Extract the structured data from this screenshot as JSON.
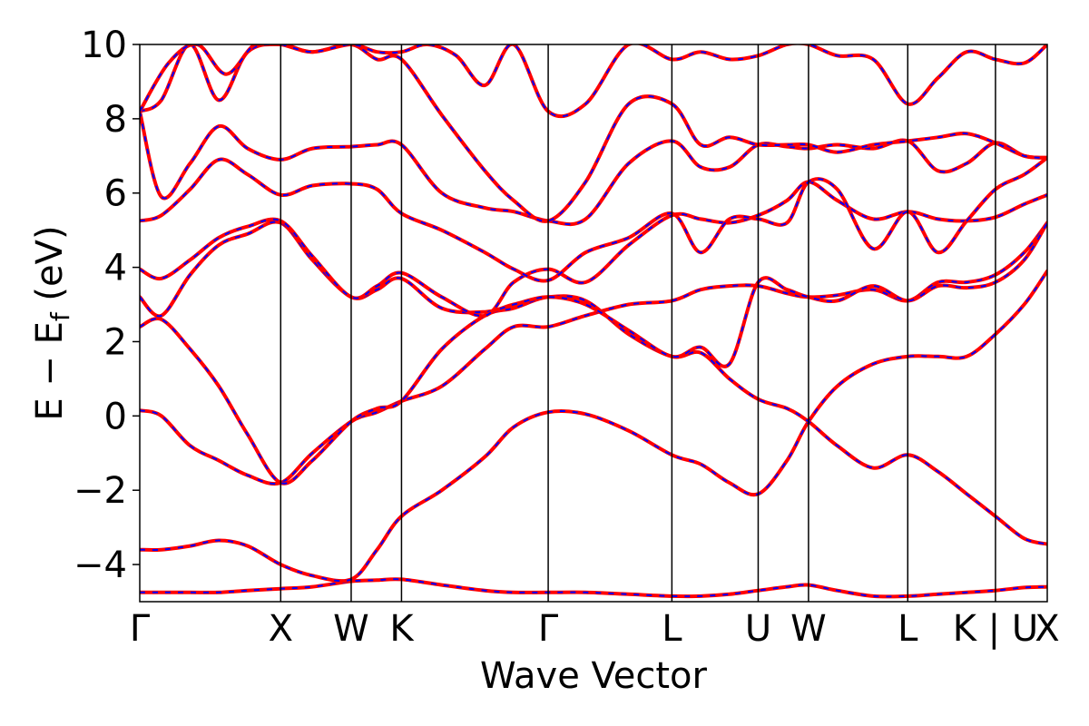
{
  "chart_data": {
    "type": "line",
    "xlabel": "Wave Vector",
    "ylabel_main": "E − E",
    "ylabel_sub": "f",
    "ylabel_unit": " (eV)",
    "ylim": [
      -5,
      10
    ],
    "xlim": [
      0,
      6.31
    ],
    "yticks": [
      -4,
      -2,
      0,
      2,
      4,
      6,
      8,
      10
    ],
    "ytick_labels": [
      "−4",
      "−2",
      "0",
      "2",
      "4",
      "6",
      "8",
      "10"
    ],
    "kpoints": [
      {
        "label": "Γ",
        "x": 0.0
      },
      {
        "label": "X",
        "x": 0.98
      },
      {
        "label": "W",
        "x": 1.47
      },
      {
        "label": "K",
        "x": 1.82
      },
      {
        "label": "Γ",
        "x": 2.84
      },
      {
        "label": "L",
        "x": 3.7
      },
      {
        "label": "U",
        "x": 4.3
      },
      {
        "label": "W",
        "x": 4.65
      },
      {
        "label": "L",
        "x": 5.34
      },
      {
        "label": "K | U",
        "x": 5.95
      },
      {
        "label": "X",
        "x": 6.31
      }
    ],
    "grid": false,
    "legend": "none",
    "colors": {
      "band_primary": "#ff0000",
      "band_overlay": "#0000ff",
      "kpath_line": "#000000"
    },
    "series": [
      {
        "x": [
          0.0,
          0.15,
          0.35,
          0.55,
          0.75,
          0.98,
          1.2,
          1.47,
          1.65,
          1.82,
          2.1,
          2.4,
          2.6,
          2.84,
          3.1,
          3.4,
          3.7,
          3.9,
          4.1,
          4.3,
          4.5,
          4.65,
          4.85,
          5.1,
          5.34,
          5.55,
          5.75,
          5.95,
          6.15,
          6.31
        ],
        "y": [
          -4.75,
          -4.75,
          -4.75,
          -4.75,
          -4.7,
          -4.65,
          -4.6,
          -4.45,
          -4.42,
          -4.4,
          -4.55,
          -4.7,
          -4.75,
          -4.75,
          -4.75,
          -4.8,
          -4.85,
          -4.85,
          -4.8,
          -4.7,
          -4.6,
          -4.55,
          -4.7,
          -4.85,
          -4.85,
          -4.8,
          -4.75,
          -4.7,
          -4.62,
          -4.6
        ]
      },
      {
        "x": [
          0.0,
          0.15,
          0.35,
          0.55,
          0.75,
          0.98,
          1.2,
          1.47,
          1.65,
          1.82,
          2.1,
          2.4,
          2.6,
          2.84,
          3.1,
          3.4,
          3.7,
          3.9,
          4.1,
          4.3,
          4.5,
          4.65,
          4.85,
          5.1,
          5.34,
          5.55,
          5.75,
          5.95,
          6.15,
          6.31
        ],
        "y": [
          -3.6,
          -3.6,
          -3.5,
          -3.35,
          -3.5,
          -4.0,
          -4.3,
          -4.4,
          -3.6,
          -2.7,
          -2.0,
          -1.1,
          -0.3,
          0.1,
          0.05,
          -0.4,
          -1.05,
          -1.3,
          -1.8,
          -2.1,
          -1.2,
          -0.15,
          0.8,
          1.4,
          1.6,
          1.6,
          1.6,
          2.2,
          3.0,
          3.9
        ]
      },
      {
        "x": [
          0.0,
          0.15,
          0.35,
          0.55,
          0.75,
          0.98,
          1.2,
          1.47,
          1.65,
          1.82,
          2.1,
          2.4,
          2.6,
          2.84,
          3.1,
          3.4,
          3.7,
          3.9,
          4.1,
          4.3,
          4.5,
          4.65,
          4.85,
          5.1,
          5.34,
          5.55,
          5.75,
          5.95,
          6.15,
          6.31
        ],
        "y": [
          0.15,
          0.0,
          -0.8,
          -1.2,
          -1.6,
          -1.8,
          -1.0,
          -0.15,
          0.1,
          0.4,
          0.8,
          1.8,
          2.4,
          2.4,
          2.7,
          3.0,
          3.1,
          3.4,
          3.5,
          3.5,
          3.3,
          3.2,
          3.25,
          3.4,
          3.1,
          3.6,
          3.6,
          3.8,
          4.4,
          5.2
        ]
      },
      {
        "x": [
          0.0,
          0.15,
          0.35,
          0.55,
          0.75,
          0.98,
          1.2,
          1.47,
          1.65,
          1.82,
          2.1,
          2.4,
          2.6,
          2.84,
          3.1,
          3.4,
          3.7,
          3.9,
          4.1,
          4.3,
          4.5,
          4.65,
          4.85,
          5.1,
          5.34,
          5.55,
          5.75,
          5.95,
          6.15,
          6.31
        ],
        "y": [
          2.4,
          2.6,
          1.8,
          0.8,
          -0.5,
          -1.8,
          -1.2,
          -0.15,
          0.2,
          0.4,
          1.8,
          2.7,
          2.9,
          3.2,
          3.1,
          2.2,
          1.6,
          1.7,
          1.0,
          0.45,
          0.2,
          -0.15,
          -0.8,
          -1.4,
          -1.05,
          -1.5,
          -2.1,
          -2.7,
          -3.3,
          -3.45
        ]
      },
      {
        "x": [
          0.0,
          0.15,
          0.35,
          0.55,
          0.75,
          0.98,
          1.2,
          1.47,
          1.65,
          1.82,
          2.1,
          2.4,
          2.6,
          2.84,
          3.1,
          3.4,
          3.7,
          3.9,
          4.1,
          4.3,
          4.5,
          4.65,
          4.85,
          5.1,
          5.34,
          5.55,
          5.75,
          5.95,
          6.15,
          6.31
        ],
        "y": [
          3.2,
          2.7,
          3.8,
          4.6,
          4.9,
          5.2,
          4.2,
          3.2,
          3.4,
          3.7,
          2.9,
          2.8,
          3.0,
          3.2,
          3.0,
          2.3,
          1.6,
          1.85,
          1.4,
          3.6,
          3.4,
          3.2,
          3.1,
          3.5,
          3.1,
          3.5,
          3.45,
          3.6,
          4.2,
          5.2
        ]
      },
      {
        "x": [
          0.0,
          0.15,
          0.35,
          0.55,
          0.75,
          0.98,
          1.2,
          1.47,
          1.65,
          1.82,
          2.1,
          2.4,
          2.6,
          2.84,
          3.1,
          3.4,
          3.7,
          3.9,
          4.1,
          4.3,
          4.5,
          4.65,
          4.85,
          5.1,
          5.34,
          5.55,
          5.75,
          5.95,
          6.15,
          6.31
        ],
        "y": [
          3.95,
          3.7,
          4.2,
          4.8,
          5.1,
          5.25,
          4.3,
          3.2,
          3.5,
          3.85,
          3.2,
          2.7,
          3.6,
          3.95,
          3.6,
          4.6,
          5.4,
          5.3,
          5.2,
          5.4,
          5.8,
          6.3,
          5.8,
          5.3,
          5.5,
          5.3,
          5.25,
          5.35,
          5.7,
          5.95
        ]
      },
      {
        "x": [
          0.0,
          0.15,
          0.35,
          0.55,
          0.75,
          0.98,
          1.2,
          1.47,
          1.65,
          1.82,
          2.1,
          2.4,
          2.6,
          2.84,
          3.1,
          3.4,
          3.7,
          3.9,
          4.1,
          4.3,
          4.5,
          4.65,
          4.85,
          5.1,
          5.34,
          5.55,
          5.75,
          5.95,
          6.15,
          6.31
        ],
        "y": [
          5.25,
          5.4,
          6.1,
          6.9,
          6.5,
          5.95,
          6.2,
          6.25,
          6.1,
          5.45,
          5.0,
          4.4,
          3.95,
          3.65,
          4.4,
          4.8,
          5.45,
          4.4,
          5.3,
          5.3,
          5.2,
          6.3,
          6.1,
          4.5,
          5.5,
          4.4,
          5.25,
          6.1,
          6.5,
          6.95
        ]
      },
      {
        "x": [
          0.0,
          0.15,
          0.35,
          0.55,
          0.75,
          0.98,
          1.2,
          1.47,
          1.65,
          1.82,
          2.1,
          2.4,
          2.6,
          2.84,
          3.1,
          3.4,
          3.7,
          3.9,
          4.1,
          4.3,
          4.5,
          4.65,
          4.85,
          5.1,
          5.34,
          5.55,
          5.75,
          5.95,
          6.15,
          6.31
        ],
        "y": [
          8.2,
          5.9,
          6.8,
          7.8,
          7.2,
          6.9,
          7.2,
          7.25,
          7.3,
          7.3,
          6.0,
          5.6,
          5.5,
          5.25,
          5.3,
          6.8,
          7.4,
          6.7,
          6.7,
          7.3,
          7.25,
          7.2,
          7.3,
          7.2,
          7.4,
          6.6,
          6.8,
          7.35,
          7.0,
          6.95
        ]
      },
      {
        "x": [
          0.0,
          0.15,
          0.35,
          0.55,
          0.75,
          0.98,
          1.2,
          1.47,
          1.65,
          1.82,
          2.1,
          2.4,
          2.6,
          2.84,
          3.1,
          3.4,
          3.7,
          3.9,
          4.1,
          4.3,
          4.5,
          4.65,
          4.85,
          5.1,
          5.34,
          5.55,
          5.75,
          5.95,
          6.15,
          6.31
        ],
        "y": [
          8.2,
          8.5,
          10.0,
          8.5,
          9.8,
          10.0,
          9.8,
          10.0,
          9.6,
          9.6,
          8.1,
          6.6,
          5.8,
          5.25,
          6.3,
          8.4,
          8.4,
          7.3,
          7.5,
          7.3,
          7.3,
          7.3,
          7.1,
          7.3,
          7.4,
          7.5,
          7.6,
          7.35,
          7.0,
          6.95
        ]
      },
      {
        "x": [
          0.0,
          0.2,
          0.4,
          0.6,
          0.8,
          0.98,
          1.2,
          1.47,
          1.65,
          1.82,
          2.0,
          2.2,
          2.4,
          2.6,
          2.84,
          3.1,
          3.4,
          3.7,
          3.9,
          4.1,
          4.3,
          4.5,
          4.65,
          4.85,
          5.1,
          5.34,
          5.55,
          5.75,
          5.95,
          6.15,
          6.31
        ],
        "y": [
          8.2,
          9.5,
          10.0,
          9.2,
          10.0,
          10.0,
          9.8,
          10.0,
          9.8,
          9.8,
          10.0,
          9.7,
          8.9,
          10.0,
          8.2,
          8.4,
          10.0,
          9.6,
          9.8,
          9.6,
          9.7,
          10.0,
          10.0,
          9.7,
          9.6,
          8.4,
          9.1,
          9.8,
          9.6,
          9.5,
          10.0
        ]
      }
    ]
  }
}
